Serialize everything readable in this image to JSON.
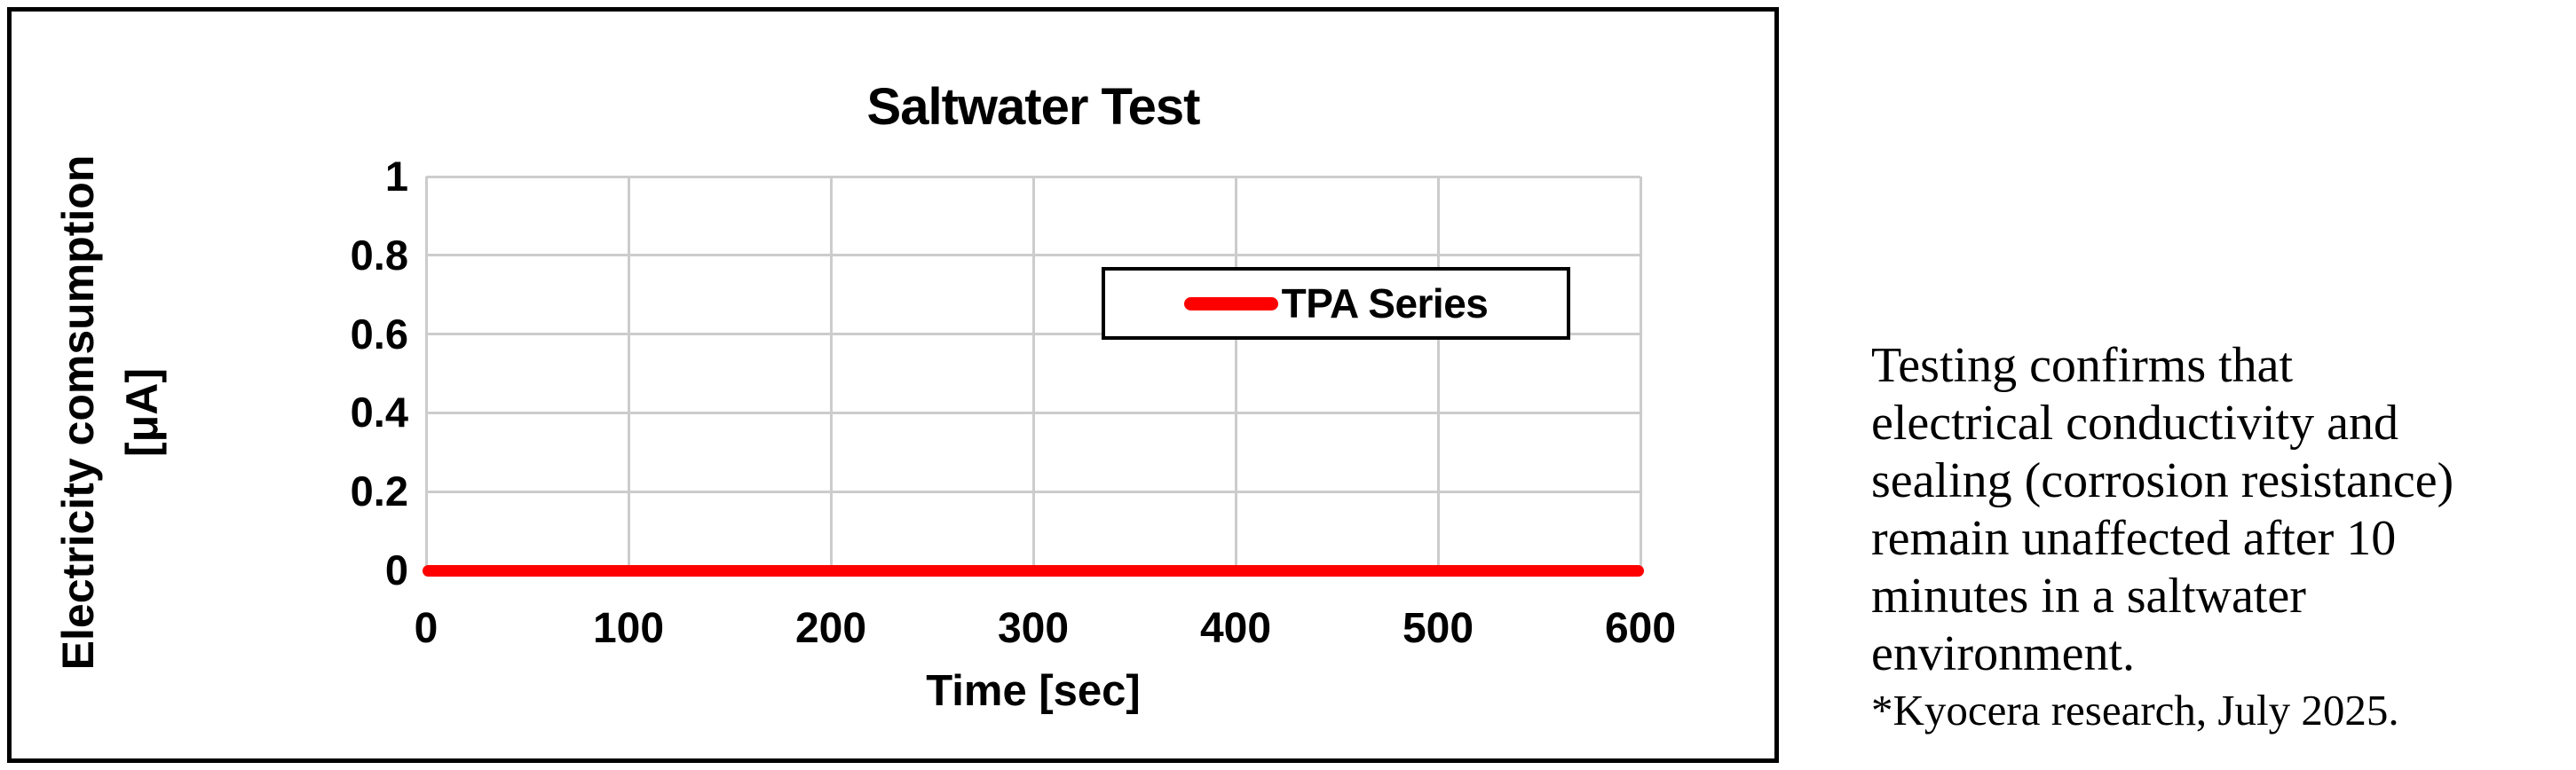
{
  "chart_data": {
    "type": "line",
    "title": "Saltwater Test",
    "xlabel": "Time [sec]",
    "ylabel_lines": "Electricity comsumption\n[μA]",
    "xlim": [
      0,
      600
    ],
    "ylim": [
      0,
      1
    ],
    "x_ticks": [
      0,
      100,
      200,
      300,
      400,
      500,
      600
    ],
    "y_ticks": [
      1,
      0.8,
      0.6,
      0.4,
      0.2,
      0
    ],
    "grid": true,
    "legend_position": "inside-upper-right",
    "series": [
      {
        "name": "TPA Series",
        "color": "#ff0000",
        "x": [
          0,
          600
        ],
        "y": [
          0,
          0
        ]
      }
    ]
  },
  "note": {
    "body": "Testing confirms that\nelectrical conductivity and\nsealing (corrosion resistance)\nremain unaffected after 10\nminutes in a saltwater\nenvironment.",
    "source": "*Kyocera research, July 2025."
  },
  "colors": {
    "series_red": "#ff0000",
    "gridline": "#cccccc",
    "frame_border": "#000000",
    "text": "#000000"
  }
}
